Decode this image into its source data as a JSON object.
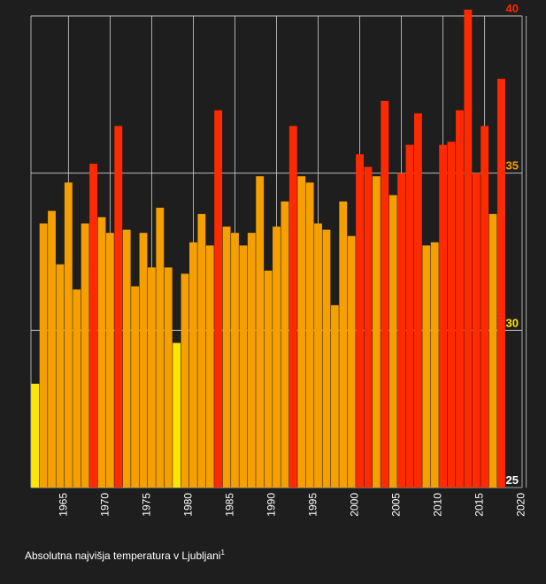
{
  "chart_data": {
    "type": "bar",
    "title": "Absolutna najvišja temperatura v Ljubljani",
    "footnote_marker": "1",
    "x": [
      1961,
      1962,
      1963,
      1964,
      1965,
      1966,
      1967,
      1968,
      1969,
      1970,
      1971,
      1972,
      1973,
      1974,
      1975,
      1976,
      1977,
      1978,
      1979,
      1980,
      1981,
      1982,
      1983,
      1984,
      1985,
      1986,
      1987,
      1988,
      1989,
      1990,
      1991,
      1992,
      1993,
      1994,
      1995,
      1996,
      1997,
      1998,
      1999,
      2000,
      2001,
      2002,
      2003,
      2004,
      2005,
      2006,
      2007,
      2008,
      2009,
      2010,
      2011,
      2012,
      2013,
      2014,
      2015,
      2016,
      2017,
      2018
    ],
    "values": [
      28.3,
      33.4,
      33.8,
      32.1,
      34.7,
      31.3,
      33.4,
      35.3,
      33.6,
      33.1,
      36.5,
      33.2,
      31.4,
      33.1,
      32.0,
      33.9,
      32.0,
      29.6,
      31.8,
      32.8,
      33.7,
      32.7,
      37.0,
      33.3,
      33.1,
      32.7,
      33.1,
      34.9,
      31.9,
      33.3,
      34.1,
      36.5,
      34.9,
      34.7,
      33.4,
      33.2,
      30.8,
      34.1,
      33.0,
      35.6,
      35.2,
      34.9,
      37.3,
      34.3,
      35.0,
      35.9,
      36.9,
      32.7,
      32.8,
      35.9,
      36.0,
      37.0,
      40.2,
      35.0,
      36.5,
      33.7,
      38.0,
      null
    ],
    "colors": {
      "yellow": "#ffe600",
      "orange": "#f5a000",
      "red": "#ff2a00",
      "background": "#1e1e1e",
      "grid": "#d0d0d0",
      "tick_30": "#ffe600",
      "tick_35": "#f5a000",
      "tick_40": "#ff2a00",
      "tick_25": "#ffffff"
    },
    "ylim": [
      25,
      40
    ],
    "y_ticks": [
      25,
      30,
      35,
      40
    ],
    "x_ticks": [
      1965,
      1970,
      1975,
      1980,
      1985,
      1990,
      1995,
      2000,
      2005,
      2010,
      2015,
      2020
    ],
    "xlim": [
      1960.5,
      2019.5
    ],
    "xlabel": "",
    "ylabel": "",
    "legend": "none"
  }
}
